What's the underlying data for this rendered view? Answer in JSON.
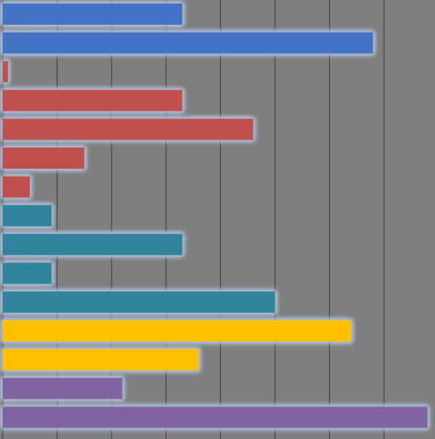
{
  "colors": {
    "background": "#7f7f7f",
    "grid": "#3f3f3f",
    "glow": "#b4c7e7"
  },
  "chart_data": {
    "type": "bar",
    "orientation": "horizontal",
    "grid": true,
    "xlim": [
      0,
      8
    ],
    "series": [
      {
        "color": "#4472c4",
        "values": [
          3.3,
          6.8
        ]
      },
      {
        "color": "#c0504d",
        "values": [
          0.1,
          3.3,
          4.6,
          1.5,
          0.5
        ]
      },
      {
        "color": "#31849b",
        "values": [
          0.9,
          3.3,
          0.9,
          5.0
        ]
      },
      {
        "color": "#ffc000",
        "values": [
          6.4,
          3.6
        ]
      },
      {
        "color": "#8064a2",
        "values": [
          2.2,
          7.8
        ]
      }
    ]
  }
}
